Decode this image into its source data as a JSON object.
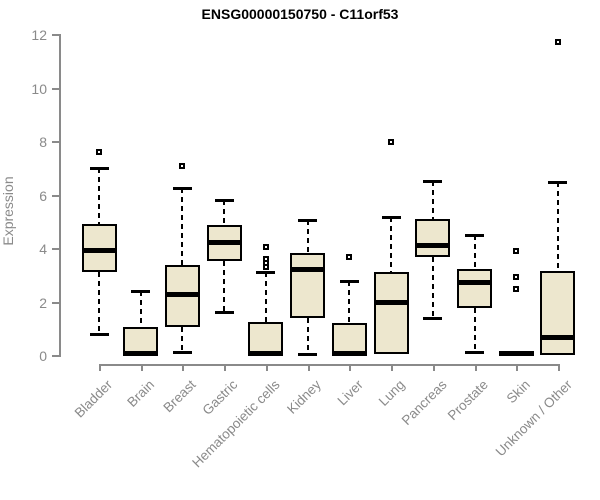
{
  "chart_data": {
    "type": "boxplot",
    "title": "ENSG00000150750 - C11orf53",
    "ylabel": "Expression",
    "xlabel": "",
    "ylim": [
      0,
      12
    ],
    "yticks": [
      0,
      2,
      4,
      6,
      8,
      10,
      12
    ],
    "grid": false,
    "legend": false,
    "box_fill_color": "#ede7ce",
    "box_border_color": "#000000",
    "axis_color": "#8a8a8a",
    "categories": [
      "Bladder",
      "Brain",
      "Breast",
      "Gastric",
      "Hematopoietic cells",
      "Kidney",
      "Liver",
      "Lung",
      "Pancreas",
      "Prostate",
      "Skin",
      "Unknown / Other"
    ],
    "groups": [
      {
        "label": "Bladder",
        "whisker_low": 0.8,
        "q1": 3.1,
        "median": 3.9,
        "q3": 4.9,
        "whisker_high": 7.0,
        "outliers": [
          7.6
        ]
      },
      {
        "label": "Brain",
        "whisker_low": 0.0,
        "q1": 0.0,
        "median": 0.05,
        "q3": 1.05,
        "whisker_high": 2.4,
        "outliers": []
      },
      {
        "label": "Breast",
        "whisker_low": 0.1,
        "q1": 1.05,
        "median": 2.25,
        "q3": 3.35,
        "whisker_high": 6.25,
        "outliers": [
          7.05
        ]
      },
      {
        "label": "Gastric",
        "whisker_low": 1.6,
        "q1": 3.5,
        "median": 4.2,
        "q3": 4.85,
        "whisker_high": 5.8,
        "outliers": []
      },
      {
        "label": "Hematopoietic cells",
        "whisker_low": 0.0,
        "q1": 0.0,
        "median": 0.05,
        "q3": 1.25,
        "whisker_high": 3.1,
        "outliers": [
          3.3,
          3.45,
          3.6,
          4.05
        ]
      },
      {
        "label": "Kidney",
        "whisker_low": 0.05,
        "q1": 1.4,
        "median": 3.2,
        "q3": 3.8,
        "whisker_high": 5.05,
        "outliers": []
      },
      {
        "label": "Liver",
        "whisker_low": 0.0,
        "q1": 0.0,
        "median": 0.05,
        "q3": 1.2,
        "whisker_high": 2.75,
        "outliers": [
          3.65
        ]
      },
      {
        "label": "Lung",
        "whisker_low": 0.0,
        "q1": 0.05,
        "median": 1.95,
        "q3": 3.1,
        "whisker_high": 5.15,
        "outliers": [
          7.95
        ]
      },
      {
        "label": "Pancreas",
        "whisker_low": 1.4,
        "q1": 3.65,
        "median": 4.1,
        "q3": 5.1,
        "whisker_high": 6.5,
        "outliers": []
      },
      {
        "label": "Prostate",
        "whisker_low": 0.1,
        "q1": 1.75,
        "median": 2.7,
        "q3": 3.2,
        "whisker_high": 4.5,
        "outliers": []
      },
      {
        "label": "Skin",
        "whisker_low": 0.0,
        "q1": 0.0,
        "median": 0.05,
        "q3": 0.1,
        "whisker_high": 0.1,
        "outliers": [
          2.45,
          2.9,
          3.9
        ]
      },
      {
        "label": "Unknown / Other",
        "whisker_low": 0.0,
        "q1": 0.0,
        "median": 0.65,
        "q3": 3.15,
        "whisker_high": 6.45,
        "outliers": [
          11.7
        ]
      }
    ]
  }
}
